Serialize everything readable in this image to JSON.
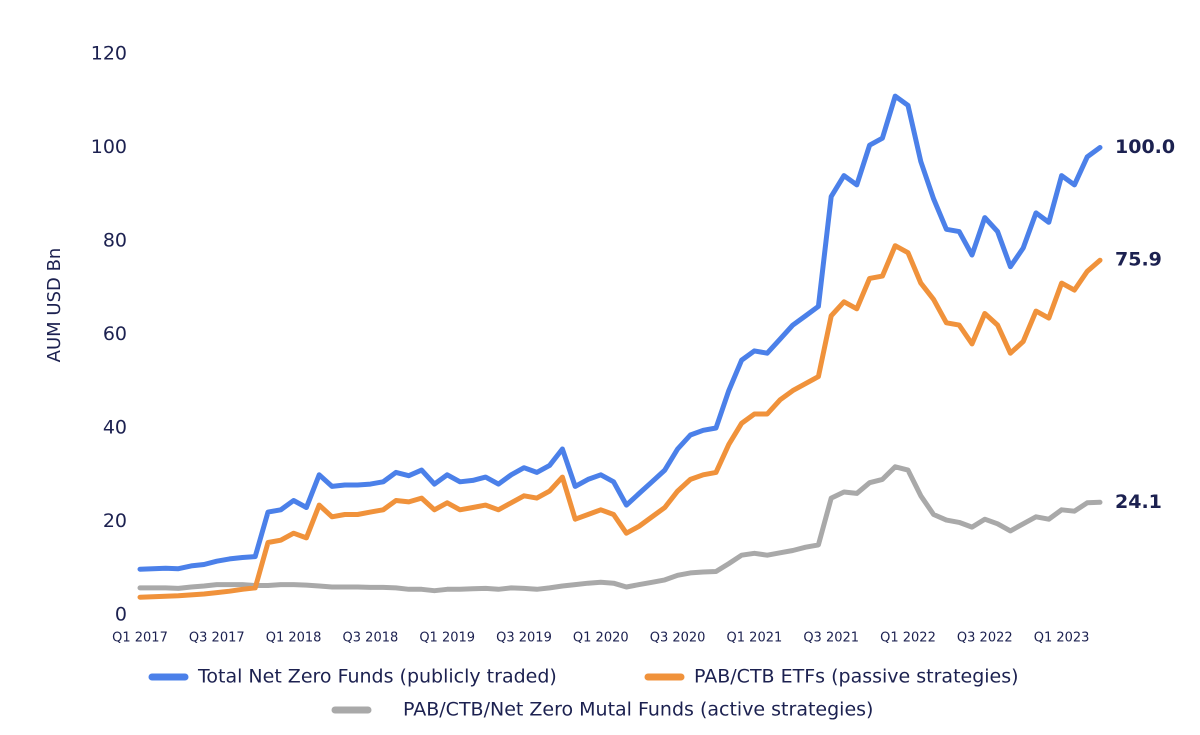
{
  "chart_data": {
    "type": "line",
    "y_label": "AUM USD Bn",
    "ylim": [
      0,
      120
    ],
    "yticks": [
      0,
      20,
      40,
      60,
      80,
      100,
      120
    ],
    "categories": [
      "Q1 2017",
      null,
      null,
      null,
      null,
      null,
      "Q3 2017",
      null,
      null,
      null,
      null,
      null,
      "Q1 2018",
      null,
      null,
      null,
      null,
      null,
      "Q3 2018",
      null,
      null,
      null,
      null,
      null,
      "Q1 2019",
      null,
      null,
      null,
      null,
      null,
      "Q3 2019",
      null,
      null,
      null,
      null,
      null,
      "Q1 2020",
      null,
      null,
      null,
      null,
      null,
      "Q3 2020",
      null,
      null,
      null,
      null,
      null,
      "Q1 2021",
      null,
      null,
      null,
      null,
      null,
      "Q3 2021",
      null,
      null,
      null,
      null,
      null,
      "Q1 2022",
      null,
      null,
      null,
      null,
      null,
      "Q3 2022",
      null,
      null,
      null,
      null,
      null,
      "Q1 2023",
      null,
      null,
      null
    ],
    "series": [
      {
        "name": "Total Net Zero Funds (publicly traded)",
        "color": "#4b80e9",
        "values": [
          9.8,
          9.9,
          10,
          9.9,
          10.5,
          10.8,
          11.5,
          12,
          12.3,
          12.5,
          22,
          22.5,
          24.5,
          23,
          30,
          27.5,
          27.8,
          27.8,
          28,
          28.5,
          30.5,
          29.8,
          31,
          28,
          30,
          28.5,
          28.8,
          29.5,
          28,
          30,
          31.5,
          30.5,
          32,
          35.5,
          27.5,
          29,
          30,
          28.5,
          23.5,
          26,
          28.5,
          31,
          35.5,
          38.5,
          39.5,
          40,
          48,
          54.5,
          56.5,
          56,
          59,
          62,
          64,
          66,
          89.5,
          94,
          92,
          100.5,
          102,
          111,
          109,
          97,
          89,
          82.5,
          82,
          77,
          85,
          82,
          74.5,
          78.5,
          86,
          84,
          94,
          92,
          98,
          100
        ],
        "value_labels": [
          null,
          null,
          null,
          null,
          null,
          null,
          null,
          null,
          null,
          null,
          null,
          null,
          null,
          null,
          null,
          null,
          null,
          null,
          null,
          null,
          null,
          null,
          null,
          null,
          null,
          null,
          null,
          null,
          null,
          null,
          null,
          null,
          null,
          null,
          null,
          null,
          null,
          null,
          null,
          null,
          null,
          null,
          null,
          null,
          null,
          null,
          null,
          null,
          null,
          null,
          null,
          null,
          null,
          null,
          null,
          null,
          null,
          null,
          null,
          null,
          null,
          null,
          null,
          null,
          null,
          null,
          null,
          null,
          null,
          null,
          null,
          null,
          null,
          null,
          null,
          "100.0"
        ]
      },
      {
        "name": "PAB/CTB ETFs (passive strategies)",
        "color": "#f0923b",
        "values": [
          3.8,
          3.9,
          4,
          4.1,
          4.3,
          4.5,
          4.8,
          5.1,
          5.5,
          5.8,
          15.5,
          16,
          17.5,
          16.5,
          23.5,
          21,
          21.5,
          21.5,
          22,
          22.5,
          24.5,
          24.2,
          25,
          22.5,
          24,
          22.5,
          23,
          23.5,
          22.5,
          24,
          25.5,
          25,
          26.5,
          29.5,
          20.5,
          21.5,
          22.5,
          21.5,
          17.5,
          19,
          21,
          23,
          26.5,
          29,
          30,
          30.5,
          36.5,
          41,
          43,
          43,
          46,
          48,
          49.5,
          51,
          64,
          67,
          65.5,
          72,
          72.5,
          79,
          77.5,
          71,
          67.5,
          62.5,
          62,
          58,
          64.5,
          62,
          56,
          58.5,
          65,
          63.5,
          71,
          69.5,
          73.5,
          75.9
        ],
        "value_labels": [
          null,
          null,
          null,
          null,
          null,
          null,
          null,
          null,
          null,
          null,
          null,
          null,
          null,
          null,
          null,
          null,
          null,
          null,
          null,
          null,
          null,
          null,
          null,
          null,
          null,
          null,
          null,
          null,
          null,
          null,
          null,
          null,
          null,
          null,
          null,
          null,
          null,
          null,
          null,
          null,
          null,
          null,
          null,
          null,
          null,
          null,
          null,
          null,
          null,
          null,
          null,
          null,
          null,
          null,
          null,
          null,
          null,
          null,
          null,
          null,
          null,
          null,
          null,
          null,
          null,
          null,
          null,
          null,
          null,
          null,
          null,
          null,
          null,
          null,
          null,
          "75.9"
        ]
      },
      {
        "name": "PAB/CTB/Net Zero Mutal Funds (active strategies)",
        "color": "#a9a9a9",
        "values": [
          5.8,
          5.8,
          5.8,
          5.7,
          6,
          6.2,
          6.5,
          6.5,
          6.5,
          6.3,
          6.3,
          6.5,
          6.5,
          6.4,
          6.2,
          6,
          6,
          6,
          5.9,
          5.9,
          5.8,
          5.5,
          5.5,
          5.2,
          5.5,
          5.5,
          5.6,
          5.7,
          5.5,
          5.8,
          5.7,
          5.5,
          5.8,
          6.2,
          6.5,
          6.8,
          7,
          6.8,
          6,
          6.5,
          7,
          7.5,
          8.5,
          9,
          9.2,
          9.3,
          11,
          12.8,
          13.2,
          12.8,
          13.3,
          13.8,
          14.5,
          15,
          25,
          26.3,
          26,
          28.3,
          29,
          31.7,
          31,
          25.5,
          21.5,
          20.3,
          19.8,
          18.8,
          20.5,
          19.5,
          18,
          19.5,
          21,
          20.5,
          22.5,
          22.2,
          24,
          24.1
        ],
        "value_labels": [
          null,
          null,
          null,
          null,
          null,
          null,
          null,
          null,
          null,
          null,
          null,
          null,
          null,
          null,
          null,
          null,
          null,
          null,
          null,
          null,
          null,
          null,
          null,
          null,
          null,
          null,
          null,
          null,
          null,
          null,
          null,
          null,
          null,
          null,
          null,
          null,
          null,
          null,
          null,
          null,
          null,
          null,
          null,
          null,
          null,
          null,
          null,
          null,
          null,
          null,
          null,
          null,
          null,
          null,
          null,
          null,
          null,
          null,
          null,
          null,
          null,
          null,
          null,
          null,
          null,
          null,
          null,
          null,
          null,
          null,
          null,
          null,
          null,
          null,
          null,
          "24.1"
        ]
      }
    ]
  }
}
